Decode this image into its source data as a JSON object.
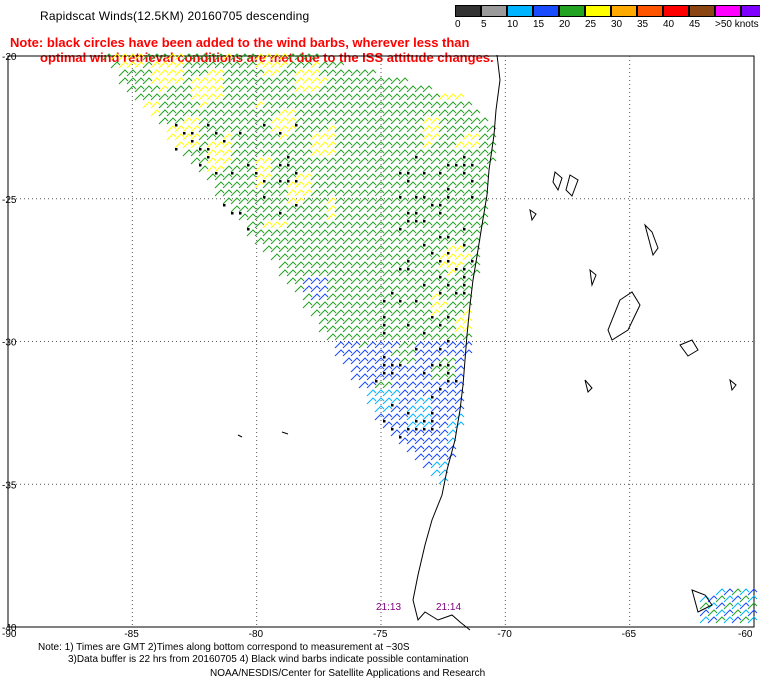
{
  "title": "Rapidscat Winds(12.5KM) 20160705 descending",
  "note": {
    "line1": "Note: black circles have been added to the wind barbs, wherever less than",
    "line2": "optimal wind retrieval conditions are met due to the ISS attitude changes."
  },
  "legend": {
    "labels": [
      "0",
      "5",
      "10",
      "15",
      "20",
      "25",
      "30",
      "35",
      "40",
      "45",
      ">50 knots"
    ],
    "colors": [
      "#333333",
      "#9a9a9a",
      "#00b4ff",
      "#1a4cff",
      "#22a322",
      "#ffff00",
      "#ffaa00",
      "#ff5500",
      "#ff0000",
      "#8b4513",
      "#ff00ff",
      "#8000ff"
    ]
  },
  "map": {
    "lat_labels": [
      "-20",
      "-25",
      "-30",
      "-35",
      "-40"
    ],
    "lon_labels": [
      "-90",
      "-85",
      "-80",
      "-75",
      "-70",
      "-65",
      "-60"
    ],
    "time_labels": [
      "21:13",
      "21:14"
    ],
    "time_color": "#800080"
  },
  "footer": {
    "line1": "Note: 1) Times are GMT 2)Times along bottom correspond to measurement at ~30S",
    "line2": "3)Data buffer is 22 hrs from 20160705 4) Black wind barbs indicate possible contamination",
    "line3": "NOAA/NESDIS/Center for Satellite Applications and Research"
  }
}
